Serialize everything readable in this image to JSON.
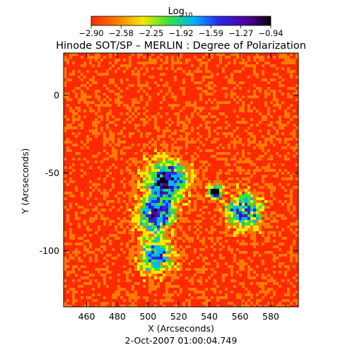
{
  "chart_data": {
    "type": "heatmap",
    "title": "Hinode SOT/SP – MERLIN : Degree of Polarization",
    "footer": "2-Oct-2007 01:00:04.749",
    "xlabel": "X (Arcseconds)",
    "ylabel": "Y (Arcseconds)",
    "xlim": [
      445,
      598
    ],
    "ylim": [
      -136,
      27
    ],
    "x_ticks": [
      460,
      480,
      500,
      520,
      540,
      560,
      580
    ],
    "y_ticks": [
      0,
      -50,
      -100
    ],
    "grid": false,
    "colorbar": {
      "label_base": "Log",
      "label_sub": "10",
      "range": [
        -2.9,
        -0.94
      ],
      "tick_labels": [
        "−2.90",
        "−2.58",
        "−2.25",
        "−1.92",
        "−1.59",
        "−1.27",
        "−0.94"
      ],
      "colors": [
        "#ff2a00",
        "#ff7a00",
        "#f2ea00",
        "#38e238",
        "#00b4ff",
        "#2a2ae6",
        "#5000a0",
        "#0a0008"
      ]
    },
    "regions": [
      {
        "name": "quiet background",
        "value": -2.75
      },
      {
        "name": "central plage core",
        "x": 512,
        "y": -55,
        "value": -1.35
      },
      {
        "name": "left plage lobe",
        "x": 505,
        "y": -77,
        "value": -1.45
      },
      {
        "name": "right plage arc",
        "x": 563,
        "y": -75,
        "value": -1.6
      },
      {
        "name": "lower plage trail",
        "x": 505,
        "y": -104,
        "value": -1.7
      },
      {
        "name": "dark pore",
        "x": 544,
        "y": -62,
        "value": -1.0
      }
    ]
  }
}
